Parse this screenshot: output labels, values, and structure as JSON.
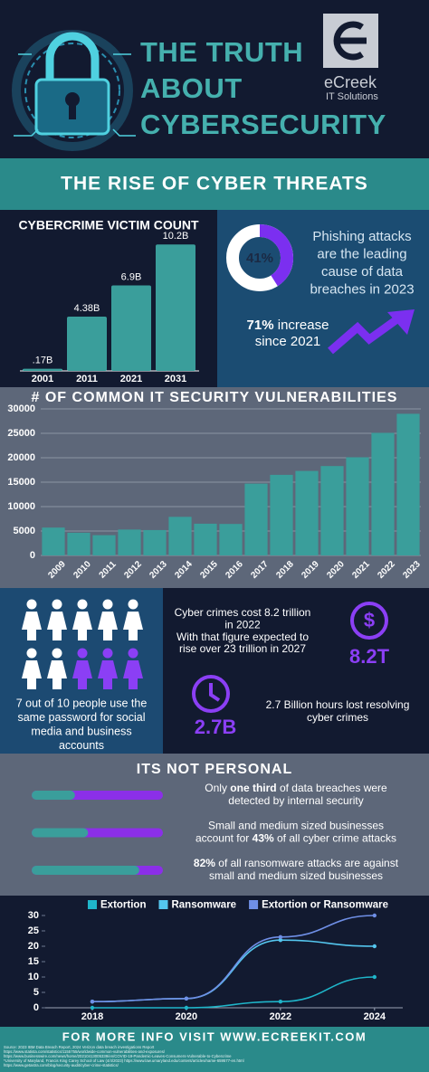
{
  "header": {
    "title_lines": [
      "THE TRUTH",
      "ABOUT",
      "CYBERSECURITY"
    ],
    "logo_name": "eCreek",
    "logo_tagline": "IT Solutions"
  },
  "banner": "THE RISE OF CYBER THREATS",
  "phishing": {
    "value": 41,
    "value_label": "41%",
    "color": "#7b2ff0",
    "text_lines": [
      "Phishing attacks",
      "are the leading",
      "cause of data",
      "breaches in 2023"
    ],
    "increase_highlight": "71%",
    "increase_after": " increase",
    "increase_line2": "since 2021"
  },
  "passwords": {
    "text_lines": [
      "7 out of 10 people use the",
      "same password for social",
      "media and business",
      "accounts"
    ]
  },
  "cost": {
    "text_lines": [
      "Cyber crimes cost 8.2 trillion",
      "in 2022",
      "With that figure expected to",
      "rise over 23 trillion in 2027"
    ],
    "stat": "8.2T"
  },
  "hours": {
    "stat": "2.7B",
    "text_lines": [
      "2.7 Billion hours lost resolving",
      "cyber crimes"
    ]
  },
  "not_personal": {
    "title": "ITS NOT PERSONAL",
    "items": [
      {
        "value": 33,
        "lines": [
          [
            {
              "text": "Only "
            },
            {
              "text": "one third",
              "bold": true
            },
            {
              "text": " of data breaches were"
            }
          ],
          [
            {
              "text": "detected by internal security"
            }
          ]
        ]
      },
      {
        "value": 43,
        "lines": [
          [
            {
              "text": "Small and medium sized businesses"
            }
          ],
          [
            {
              "text": "account for "
            },
            {
              "text": "43%",
              "bold": true
            },
            {
              "text": " of all cyber crime attacks"
            }
          ]
        ]
      },
      {
        "value": 82,
        "lines": [
          [
            {
              "text": "82%",
              "bold": true
            },
            {
              "text": " of all ransomware attacks are against"
            }
          ],
          [
            {
              "text": "small and medium sized businesses"
            }
          ]
        ]
      }
    ]
  },
  "footer": {
    "cta": "FOR MORE INFO VISIT WWW.ECREEKIT.COM",
    "sources": [
      "Source: 2023 IBM Data Breach Report, 2024 Verizon data breach investigations Report",
      "https://www.statista.com/statistics/1155755/worldwide-common-vulnerabilities-and-exposures/",
      "https://www.businesswire.com/news/home/20210413005339/en/COVID-19-Pandemic-Leaves-Consumers-Vulnerable-to-Cybercrime",
      "*University of Maryland, Francis King Carey School of Law (4/4/2023) https://www.law.umaryland.edu/content/articles/name-659577-en.html",
      "https://www.getastra.com/blog/security-audit/cyber-crime-statistics/"
    ]
  },
  "chart_data": [
    {
      "type": "bar",
      "title": "CYBERCRIME VICTIM COUNT",
      "categories": [
        "2001",
        "2011",
        "2021",
        "2031"
      ],
      "values": [
        0.17,
        4.38,
        6.9,
        10.2
      ],
      "value_labels": [
        ".17B",
        "4.38B",
        "6.9B",
        "10.2B"
      ],
      "color": "#3a9e9b"
    },
    {
      "type": "bar",
      "title": "# OF COMMON IT SECURITY VULNERABILITIES",
      "categories": [
        "2009",
        "2010",
        "2011",
        "2012",
        "2013",
        "2014",
        "2015",
        "2016",
        "2017",
        "2018",
        "2019",
        "2020",
        "2021",
        "2022",
        "2023"
      ],
      "values": [
        5700,
        4650,
        4150,
        5300,
        5200,
        7900,
        6500,
        6450,
        14700,
        16500,
        17300,
        18300,
        20100,
        25100,
        29000
      ],
      "color": "#3a9e9b",
      "ylim": [
        0,
        30000
      ],
      "yticks": [
        0,
        5000,
        10000,
        15000,
        20000,
        25000,
        30000
      ],
      "grid": true
    },
    {
      "type": "line",
      "x": [
        2018,
        2020,
        2022,
        2024
      ],
      "xlim": [
        2017,
        2024.6
      ],
      "xticks": [
        2018,
        2020,
        2022,
        2024
      ],
      "ylim": [
        0,
        30
      ],
      "yticks": [
        0,
        5,
        10,
        15,
        20,
        25,
        30
      ],
      "legend": "top",
      "series": [
        {
          "name": "Extortion",
          "color": "#1fb5c9",
          "values": [
            0,
            0,
            2,
            10
          ]
        },
        {
          "name": "Ransomware",
          "color": "#54c6ee",
          "values": [
            2,
            3,
            22,
            20
          ]
        },
        {
          "name": "Extortion or Ransomware",
          "color": "#6f8fe6",
          "values": [
            2,
            3,
            23,
            30
          ]
        }
      ]
    }
  ]
}
